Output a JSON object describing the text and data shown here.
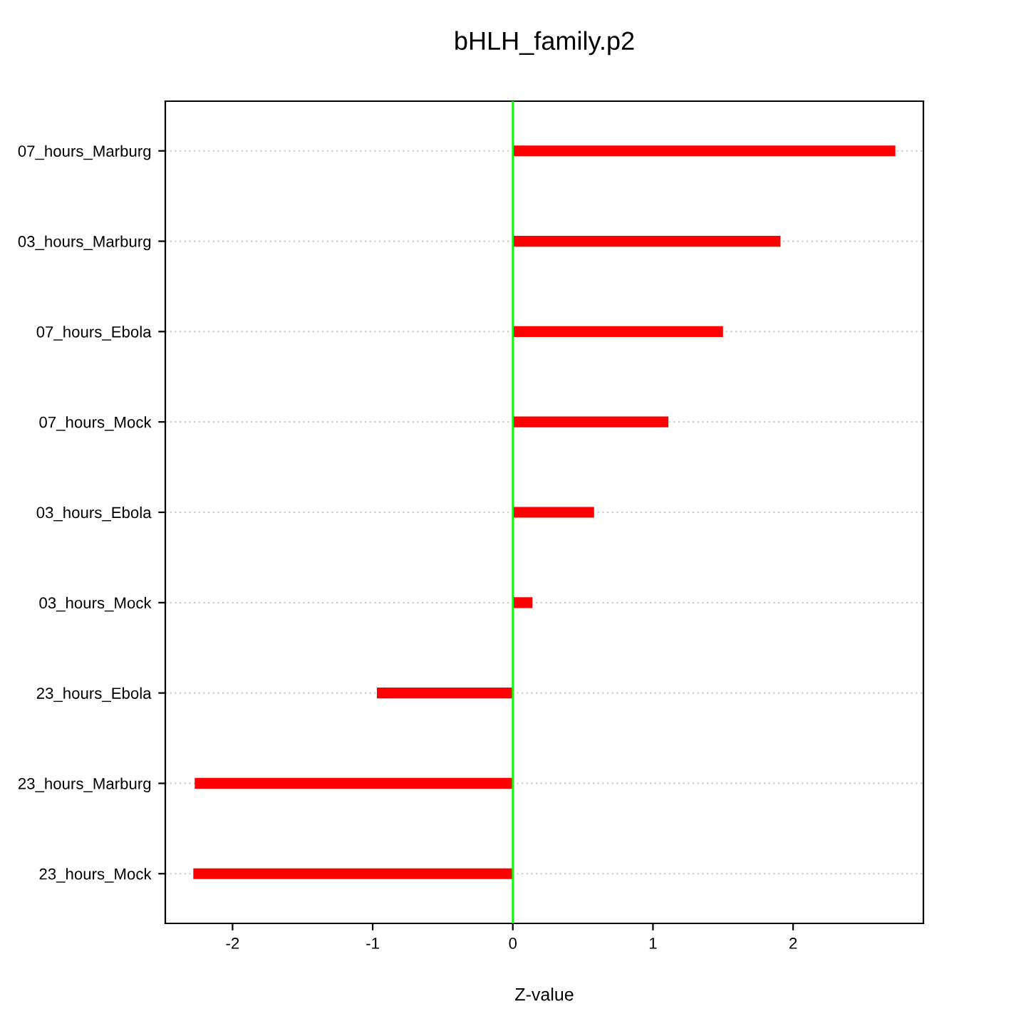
{
  "chart_data": {
    "type": "bar",
    "orientation": "horizontal",
    "title": "bHLH_family.p2",
    "xlabel": "Z-value",
    "categories": [
      "07_hours_Marburg",
      "03_hours_Marburg",
      "07_hours_Ebola",
      "07_hours_Mock",
      "03_hours_Ebola",
      "03_hours_Mock",
      "23_hours_Ebola",
      "23_hours_Marburg",
      "23_hours_Mock"
    ],
    "values": [
      2.73,
      1.91,
      1.5,
      1.11,
      0.58,
      0.14,
      -0.97,
      -2.27,
      -2.28
    ],
    "color": "#ff0000",
    "xlim": [
      -2.48,
      2.93
    ],
    "xticks": [
      -2,
      -1,
      0,
      1,
      2
    ],
    "grid": "y",
    "ref_lines": [
      {
        "axis": "x",
        "value": 0,
        "color": "#00ff00"
      }
    ]
  }
}
